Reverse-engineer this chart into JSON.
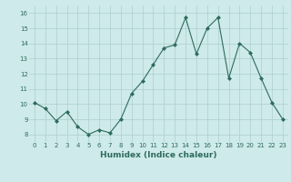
{
  "x": [
    0,
    1,
    2,
    3,
    4,
    5,
    6,
    7,
    8,
    9,
    10,
    11,
    12,
    13,
    14,
    15,
    16,
    17,
    18,
    19,
    20,
    21,
    22,
    23
  ],
  "y": [
    10.1,
    9.7,
    8.9,
    9.5,
    8.5,
    8.0,
    8.3,
    8.1,
    9.0,
    10.7,
    11.5,
    12.6,
    13.7,
    13.9,
    15.7,
    13.3,
    15.0,
    15.7,
    11.7,
    14.0,
    13.4,
    11.7,
    10.1,
    9.0
  ],
  "xlabel": "Humidex (Indice chaleur)",
  "xlim": [
    -0.5,
    23.5
  ],
  "ylim": [
    7.5,
    16.5
  ],
  "yticks": [
    8,
    9,
    10,
    11,
    12,
    13,
    14,
    15,
    16
  ],
  "xticks": [
    0,
    1,
    2,
    3,
    4,
    5,
    6,
    7,
    8,
    9,
    10,
    11,
    12,
    13,
    14,
    15,
    16,
    17,
    18,
    19,
    20,
    21,
    22,
    23
  ],
  "xtick_labels": [
    "0",
    "1",
    "2",
    "3",
    "4",
    "5",
    "6",
    "7",
    "8",
    "9",
    "10",
    "11",
    "12",
    "13",
    "14",
    "15",
    "16",
    "17",
    "18",
    "19",
    "20",
    "21",
    "22",
    "23"
  ],
  "line_color": "#2e6b5e",
  "marker": "D",
  "marker_size": 2.0,
  "bg_color": "#ceeaea",
  "grid_color": "#aecece",
  "label_color": "#2e6b5e",
  "tick_label_fontsize": 5.0,
  "xlabel_fontsize": 6.5
}
